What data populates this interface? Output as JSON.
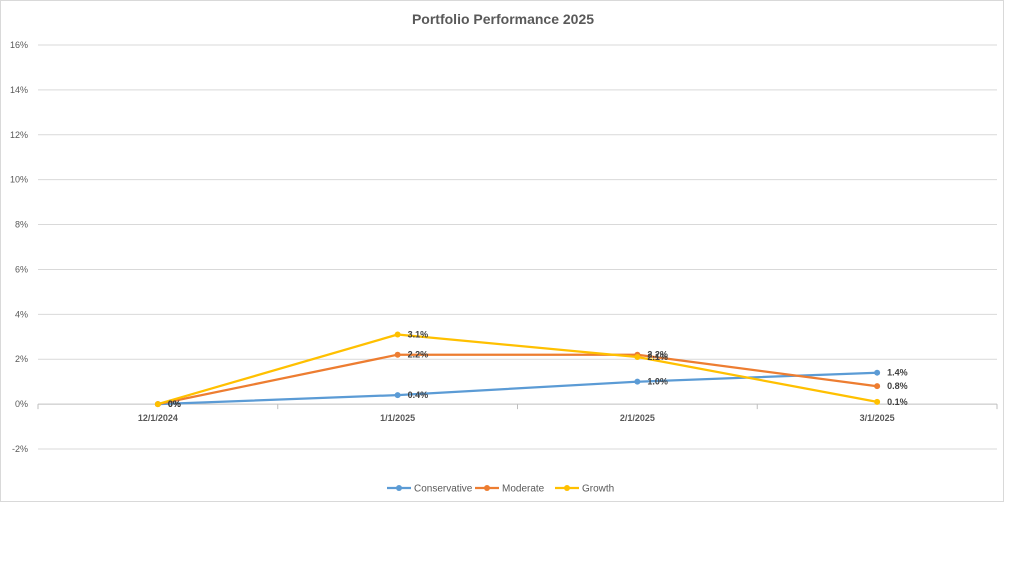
{
  "chart_data": {
    "type": "line",
    "title": "Portfolio Performance 2025",
    "xlabel": "",
    "ylabel": "",
    "categories": [
      "12/1/2024",
      "1/1/2025",
      "2/1/2025",
      "3/1/2025"
    ],
    "ylim": [
      -2,
      16
    ],
    "yticks": [
      -2,
      0,
      2,
      4,
      6,
      8,
      10,
      12,
      14,
      16
    ],
    "ytick_labels": [
      "-2%",
      "0%",
      "2%",
      "4%",
      "6%",
      "8%",
      "10%",
      "12%",
      "14%",
      "16%"
    ],
    "grid": true,
    "legend_position": "bottom",
    "series": [
      {
        "name": "Conservative",
        "color": "#5b9bd5",
        "values": [
          0,
          0.4,
          1.0,
          1.4
        ],
        "labels": [
          "0%",
          "0.4%",
          "1.0%",
          "1.4%"
        ]
      },
      {
        "name": "Moderate",
        "color": "#ed7d31",
        "values": [
          0,
          2.2,
          2.2,
          0.8
        ],
        "labels": [
          "0%",
          "2.2%",
          "2.2%",
          "0.8%"
        ]
      },
      {
        "name": "Growth",
        "color": "#ffc000",
        "values": [
          0,
          3.1,
          2.1,
          0.1
        ],
        "labels": [
          "0%",
          "3.1%",
          "2.1%",
          "0.1%"
        ]
      }
    ]
  }
}
